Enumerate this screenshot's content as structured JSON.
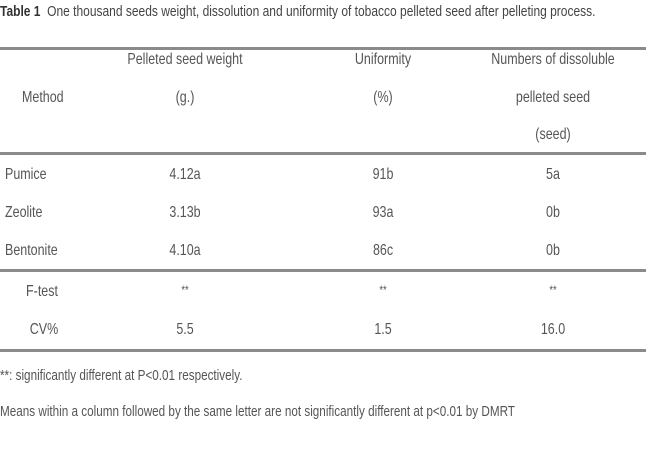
{
  "caption": {
    "label": "Table 1",
    "text": "One thousand seeds weight, dissolution and uniformity of tobacco pelleted seed after pelleting process."
  },
  "headers": {
    "method": "Method",
    "weight": [
      "Pelleted seed weight",
      "(g.)"
    ],
    "uniformity": [
      "Uniformity",
      "(%)"
    ],
    "dissoluble": [
      "Numbers of dissoluble",
      "pelleted seed",
      "(seed)"
    ]
  },
  "rows": [
    {
      "method": "Pumice",
      "weight": "4.12a",
      "uniformity": "91b",
      "dissoluble": "5a"
    },
    {
      "method": "Zeolite",
      "weight": "3.13b",
      "uniformity": "93a",
      "dissoluble": "0b"
    },
    {
      "method": "Bentonite",
      "weight": "4.10a",
      "uniformity": "86c",
      "dissoluble": "0b"
    }
  ],
  "stats": [
    {
      "label": "F-test",
      "weight": "**",
      "uniformity": "**",
      "dissoluble": "**"
    },
    {
      "label": "CV%",
      "weight": "5.5",
      "uniformity": "1.5",
      "dissoluble": "16.0"
    }
  ],
  "footnotes": [
    "**: significantly different at P<0.01 respectively.",
    "Means within a column followed by the same letter are not significantly different at p<0.01 by DMRT"
  ]
}
